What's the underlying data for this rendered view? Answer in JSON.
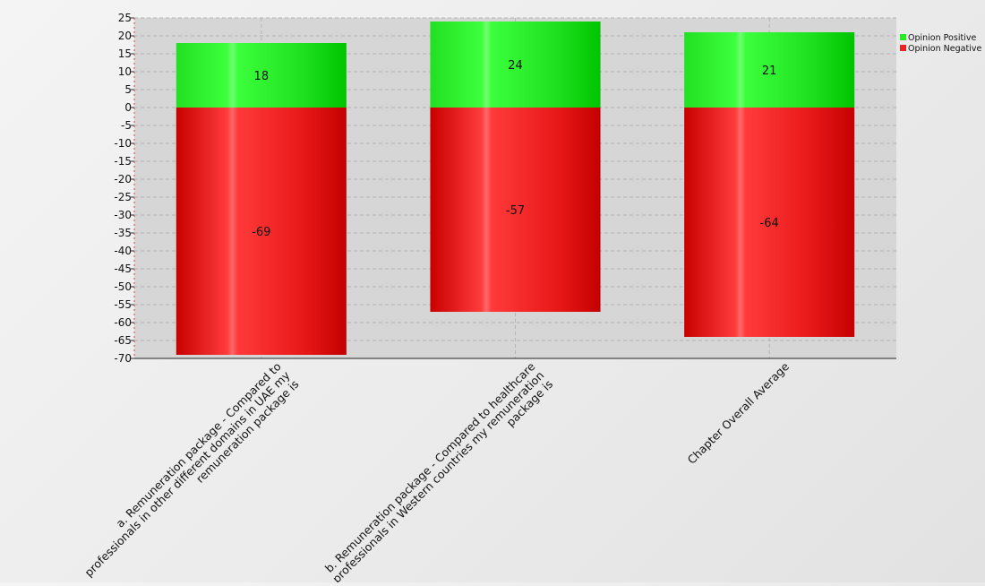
{
  "chart_data": {
    "type": "bar",
    "stacked": true,
    "categories": [
      "a. Remuneration package - Compared to professionals in other different domains in UAE my remuneration package is",
      "b. Remuneration package - Compared to healthcare professionals in Western countries my remuneration package is",
      "Chapter Overall Average"
    ],
    "category_lines": [
      [
        "a. Remuneration package - Compared to",
        "professionals in other different domains in UAE my",
        "remuneration package is"
      ],
      [
        "b. Remuneration package - Compared to healthcare",
        "professionals in Western countries my remuneration",
        "package is"
      ],
      [
        "Chapter Overall Average"
      ]
    ],
    "series": [
      {
        "name": "Opinion Positive",
        "values": [
          18,
          24,
          21
        ],
        "color": "#22ee22"
      },
      {
        "name": "Opinion Negative",
        "values": [
          -69,
          -57,
          -64
        ],
        "color": "#ee2222"
      }
    ],
    "ylim": [
      -70,
      25
    ],
    "ytick_step": 5,
    "xlabel": "",
    "ylabel": "",
    "title": "",
    "grid": true,
    "legend_position": "top-right"
  }
}
